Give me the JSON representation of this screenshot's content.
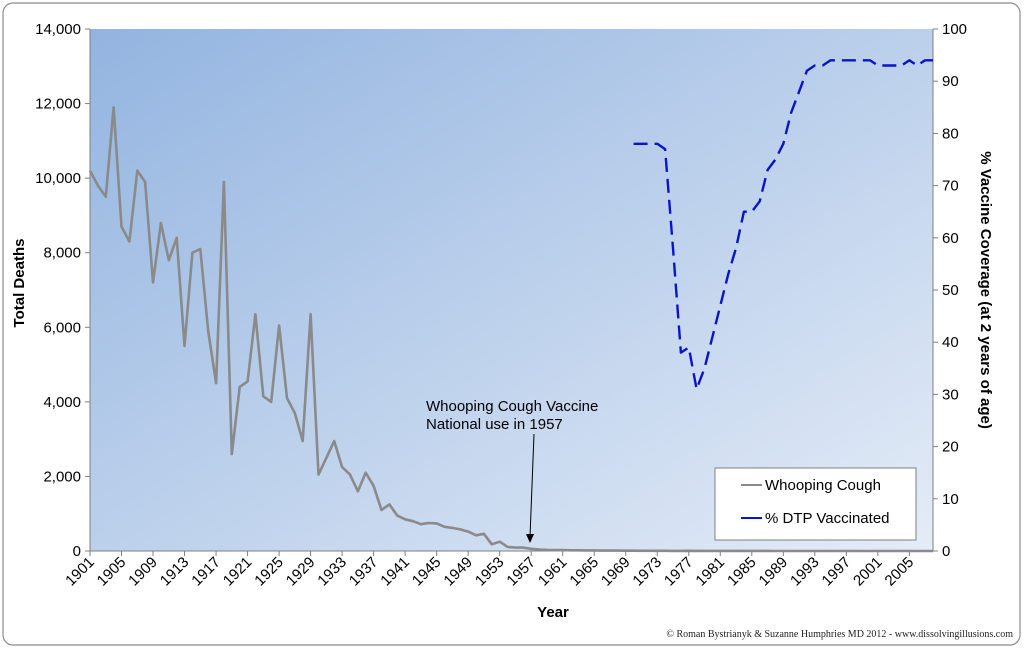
{
  "chart_data": {
    "type": "line",
    "xlabel": "Year",
    "ylabel": "Total Deaths",
    "y2label": "% Vaccine Coverage (at 2 years of age)",
    "ylim": [
      0,
      14000
    ],
    "y2lim": [
      0,
      100
    ],
    "xlim": [
      1901,
      2008
    ],
    "y_ticks": [
      "0",
      "2,000",
      "4,000",
      "6,000",
      "8,000",
      "10,000",
      "12,000",
      "14,000"
    ],
    "y2_ticks": [
      "0",
      "10",
      "20",
      "30",
      "40",
      "50",
      "60",
      "70",
      "80",
      "90",
      "100"
    ],
    "x_ticks": [
      "1901",
      "1905",
      "1909",
      "1913",
      "1917",
      "1921",
      "1925",
      "1929",
      "1933",
      "1937",
      "1941",
      "1945",
      "1949",
      "1953",
      "1957",
      "1961",
      "1965",
      "1969",
      "1973",
      "1977",
      "1981",
      "1985",
      "1989",
      "1993",
      "1997",
      "2001",
      "2005"
    ],
    "annotation": {
      "lines": [
        "Whooping Cough Vaccine",
        "National use  in 1957"
      ],
      "year": 1957
    },
    "legend_position": "bottom-right",
    "series": [
      {
        "name": "Whooping Cough",
        "axis": "left",
        "color": "#8a8a8a",
        "style": "solid",
        "x": [
          1901,
          1902,
          1903,
          1904,
          1905,
          1906,
          1907,
          1908,
          1909,
          1910,
          1911,
          1912,
          1913,
          1914,
          1915,
          1916,
          1917,
          1918,
          1919,
          1920,
          1921,
          1922,
          1923,
          1924,
          1925,
          1926,
          1927,
          1928,
          1929,
          1930,
          1931,
          1932,
          1933,
          1934,
          1935,
          1936,
          1937,
          1938,
          1939,
          1940,
          1941,
          1942,
          1943,
          1944,
          1945,
          1946,
          1947,
          1948,
          1949,
          1950,
          1951,
          1952,
          1953,
          1954,
          1955,
          1956,
          1957,
          1958,
          1959,
          1960,
          1961,
          1962,
          1963,
          1964,
          1965,
          1966,
          1967,
          1968,
          1969,
          1970,
          1971,
          1972,
          1973,
          1974,
          1975,
          1976,
          1977,
          1978,
          1979,
          1980,
          1981,
          1982,
          1983,
          1984,
          1985,
          1986,
          1987,
          1988,
          1989,
          1990,
          1991,
          1992,
          1993,
          1994,
          1995,
          1996,
          1997,
          1998,
          1999,
          2000,
          2001,
          2002,
          2003,
          2004,
          2005,
          2006,
          2007,
          2008
        ],
        "values": [
          10200,
          9800,
          9500,
          11900,
          8700,
          8300,
          10200,
          9900,
          7200,
          8800,
          7800,
          8400,
          5500,
          8000,
          8100,
          5900,
          4500,
          9900,
          2600,
          4400,
          4550,
          6350,
          4150,
          4000,
          6050,
          4100,
          3700,
          2950,
          6350,
          2050,
          2500,
          2950,
          2250,
          2050,
          1600,
          2100,
          1750,
          1100,
          1250,
          950,
          850,
          800,
          720,
          750,
          740,
          650,
          620,
          580,
          520,
          420,
          460,
          180,
          250,
          110,
          90,
          90,
          60,
          40,
          30,
          25,
          25,
          20,
          20,
          15,
          15,
          12,
          10,
          10,
          8,
          8,
          6,
          5,
          5,
          5,
          4,
          4,
          6,
          4,
          3,
          3,
          3,
          2,
          2,
          2,
          2,
          2,
          2,
          1,
          1,
          1,
          1,
          1,
          1,
          1,
          1,
          1,
          1,
          1,
          1,
          1,
          1,
          1,
          1,
          1,
          1,
          1,
          1,
          1
        ]
      },
      {
        "name": "% DTP Vaccinated",
        "axis": "right",
        "color": "#0a14c8",
        "style": "dashed",
        "x": [
          1970,
          1971,
          1972,
          1973,
          1974,
          1975,
          1976,
          1977,
          1978,
          1979,
          1980,
          1981,
          1982,
          1983,
          1984,
          1985,
          1986,
          1987,
          1988,
          1989,
          1990,
          1991,
          1992,
          1993,
          1994,
          1995,
          1996,
          1997,
          1998,
          1999,
          2000,
          2001,
          2002,
          2003,
          2004,
          2005,
          2006,
          2007,
          2008
        ],
        "values": [
          78,
          78,
          78,
          78,
          77,
          58,
          38,
          39,
          31,
          35,
          41,
          47,
          53,
          58,
          65,
          65,
          67,
          73,
          75,
          78,
          84,
          88,
          92,
          93,
          93,
          94,
          94,
          94,
          94,
          94,
          94,
          93,
          93,
          93,
          93,
          94,
          93,
          94,
          94
        ]
      }
    ]
  },
  "credit": "© Roman Bystrianyk & Suzanne Humphries MD 2012 - www.dissolvingillusions.com",
  "colors": {
    "plot_left": "#93b4e0",
    "plot_right": "#dfe8f6",
    "frame_border": "#8c8c8c"
  }
}
